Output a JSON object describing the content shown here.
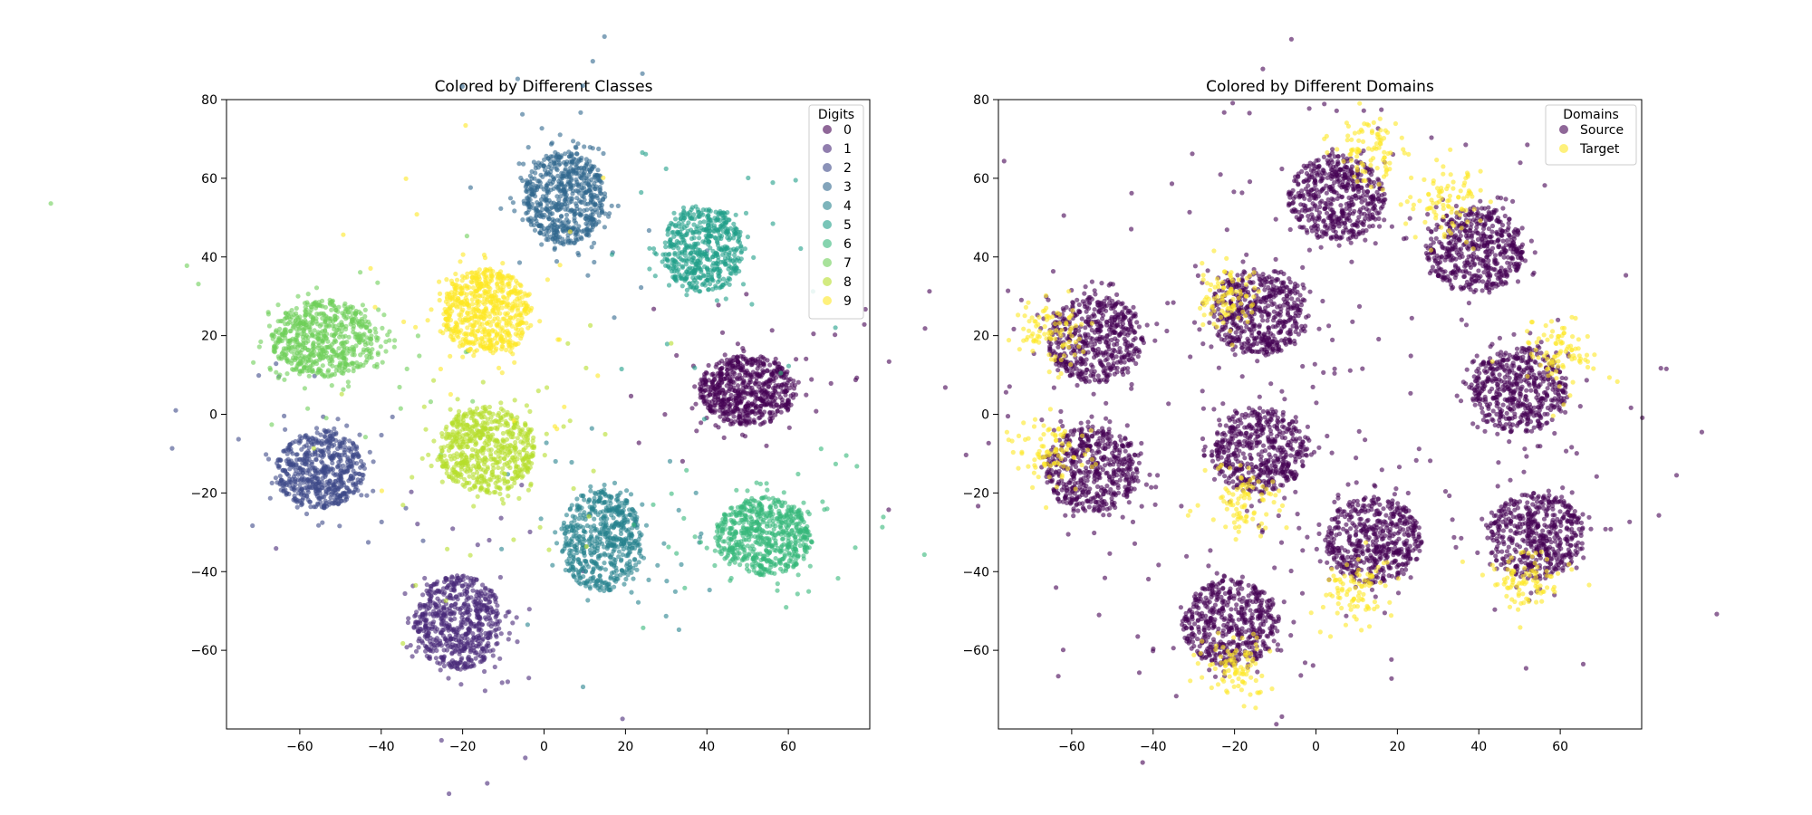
{
  "chart_data": [
    {
      "type": "scatter",
      "title": "Colored by Different Classes",
      "xlabel": "",
      "ylabel": "",
      "xlim": [
        -78,
        80
      ],
      "ylim": [
        -80,
        80
      ],
      "xticks": [
        -60,
        -40,
        -20,
        0,
        20,
        40,
        60
      ],
      "yticks": [
        -60,
        -40,
        -20,
        0,
        20,
        40,
        60,
        80
      ],
      "grid": false,
      "legend": {
        "title": "Digits",
        "placement": "top-right",
        "entries": [
          "0",
          "1",
          "2",
          "3",
          "4",
          "5",
          "6",
          "7",
          "8",
          "9"
        ]
      },
      "series": [
        {
          "name": "0",
          "color": "#440154",
          "center": [
            50,
            6
          ],
          "spread": [
            12,
            9
          ],
          "count": 650
        },
        {
          "name": "1",
          "color": "#482878",
          "center": [
            -21,
            -53
          ],
          "spread": [
            11,
            12
          ],
          "count": 650
        },
        {
          "name": "2",
          "color": "#3e4989",
          "center": [
            -55,
            -14
          ],
          "spread": [
            11,
            10
          ],
          "count": 600
        },
        {
          "name": "3",
          "color": "#31688e",
          "center": [
            5,
            55
          ],
          "spread": [
            10,
            12
          ],
          "count": 650
        },
        {
          "name": "4",
          "color": "#26828e",
          "center": [
            14,
            -32
          ],
          "spread": [
            10,
            13
          ],
          "count": 600
        },
        {
          "name": "5",
          "color": "#1f9e89",
          "center": [
            39,
            42
          ],
          "spread": [
            10,
            11
          ],
          "count": 550
        },
        {
          "name": "6",
          "color": "#35b779",
          "center": [
            54,
            -31
          ],
          "spread": [
            12,
            10
          ],
          "count": 650
        },
        {
          "name": "7",
          "color": "#6ece58",
          "center": [
            -54,
            19
          ],
          "spread": [
            13,
            10
          ],
          "count": 650
        },
        {
          "name": "8",
          "color": "#b5de2b",
          "center": [
            -14,
            -9
          ],
          "spread": [
            12,
            11
          ],
          "count": 650
        },
        {
          "name": "9",
          "color": "#fde725",
          "center": [
            -14,
            26
          ],
          "spread": [
            11,
            11
          ],
          "count": 650
        }
      ]
    },
    {
      "type": "scatter",
      "title": "Colored by Different Domains",
      "xlabel": "",
      "ylabel": "",
      "xlim": [
        -78,
        80
      ],
      "ylim": [
        -80,
        80
      ],
      "xticks": [
        -60,
        -40,
        -20,
        0,
        20,
        40,
        60
      ],
      "yticks": [
        -60,
        -40,
        -20,
        0,
        20,
        40,
        60,
        80
      ],
      "grid": false,
      "legend": {
        "title": "Domains",
        "placement": "top-right",
        "entries": [
          "Source",
          "Target"
        ]
      },
      "series": [
        {
          "name": "Source",
          "color": "#440154",
          "clusters": [
            [
              50,
              6
            ],
            [
              -21,
              -53
            ],
            [
              -55,
              -14
            ],
            [
              5,
              55
            ],
            [
              14,
              -32
            ],
            [
              39,
              42
            ],
            [
              54,
              -31
            ],
            [
              -54,
              19
            ],
            [
              -14,
              -9
            ],
            [
              -14,
              26
            ]
          ],
          "count": 5400
        },
        {
          "name": "Target",
          "color": "#fde725",
          "clusters": [
            [
              60,
              15
            ],
            [
              -20,
              -65
            ],
            [
              -65,
              -10
            ],
            [
              14,
              66
            ],
            [
              10,
              -45
            ],
            [
              32,
              54
            ],
            [
              52,
              -42
            ],
            [
              -65,
              20
            ],
            [
              -18,
              -22
            ],
            [
              -22,
              30
            ]
          ],
          "count": 900
        }
      ]
    }
  ]
}
